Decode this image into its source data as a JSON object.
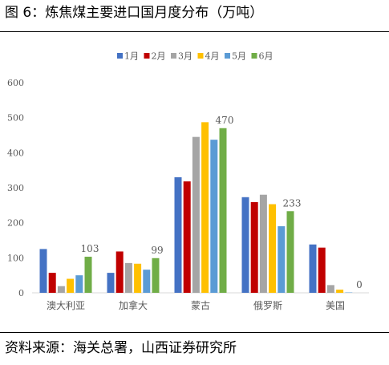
{
  "figure": {
    "title": "图 6：炼焦煤主要进口国月度分布（万吨）",
    "source": "资料来源：海关总署，山西证券研究所"
  },
  "chart_data": {
    "type": "bar",
    "categories": [
      "澳大利亚",
      "加拿大",
      "蒙古",
      "俄罗斯",
      "美国"
    ],
    "series": [
      {
        "name": "1月",
        "color": "#4472C4",
        "values": [
          125,
          57,
          330,
          273,
          138
        ]
      },
      {
        "name": "2月",
        "color": "#C00000",
        "values": [
          57,
          118,
          318,
          259,
          129
        ]
      },
      {
        "name": "3月",
        "color": "#A5A5A5",
        "values": [
          19,
          85,
          445,
          280,
          22
        ]
      },
      {
        "name": "4月",
        "color": "#FFC000",
        "values": [
          40,
          83,
          487,
          253,
          9
        ]
      },
      {
        "name": "5月",
        "color": "#5B9BD5",
        "values": [
          50,
          66,
          437,
          190,
          1
        ]
      },
      {
        "name": "6月",
        "color": "#70AD47",
        "values": [
          103,
          99,
          470,
          233,
          0
        ]
      }
    ],
    "data_labels": [
      {
        "category": "澳大利亚",
        "series": "6月",
        "text": "103"
      },
      {
        "category": "加拿大",
        "series": "6月",
        "text": "99"
      },
      {
        "category": "蒙古",
        "series": "6月",
        "text": "470"
      },
      {
        "category": "俄罗斯",
        "series": "6月",
        "text": "233"
      },
      {
        "category": "美国",
        "series": "6月",
        "text": "0"
      }
    ],
    "ylim": [
      0,
      600
    ],
    "yticks": [
      0,
      100,
      200,
      300,
      400,
      500,
      600
    ],
    "grid": false,
    "legend_position": "top"
  }
}
